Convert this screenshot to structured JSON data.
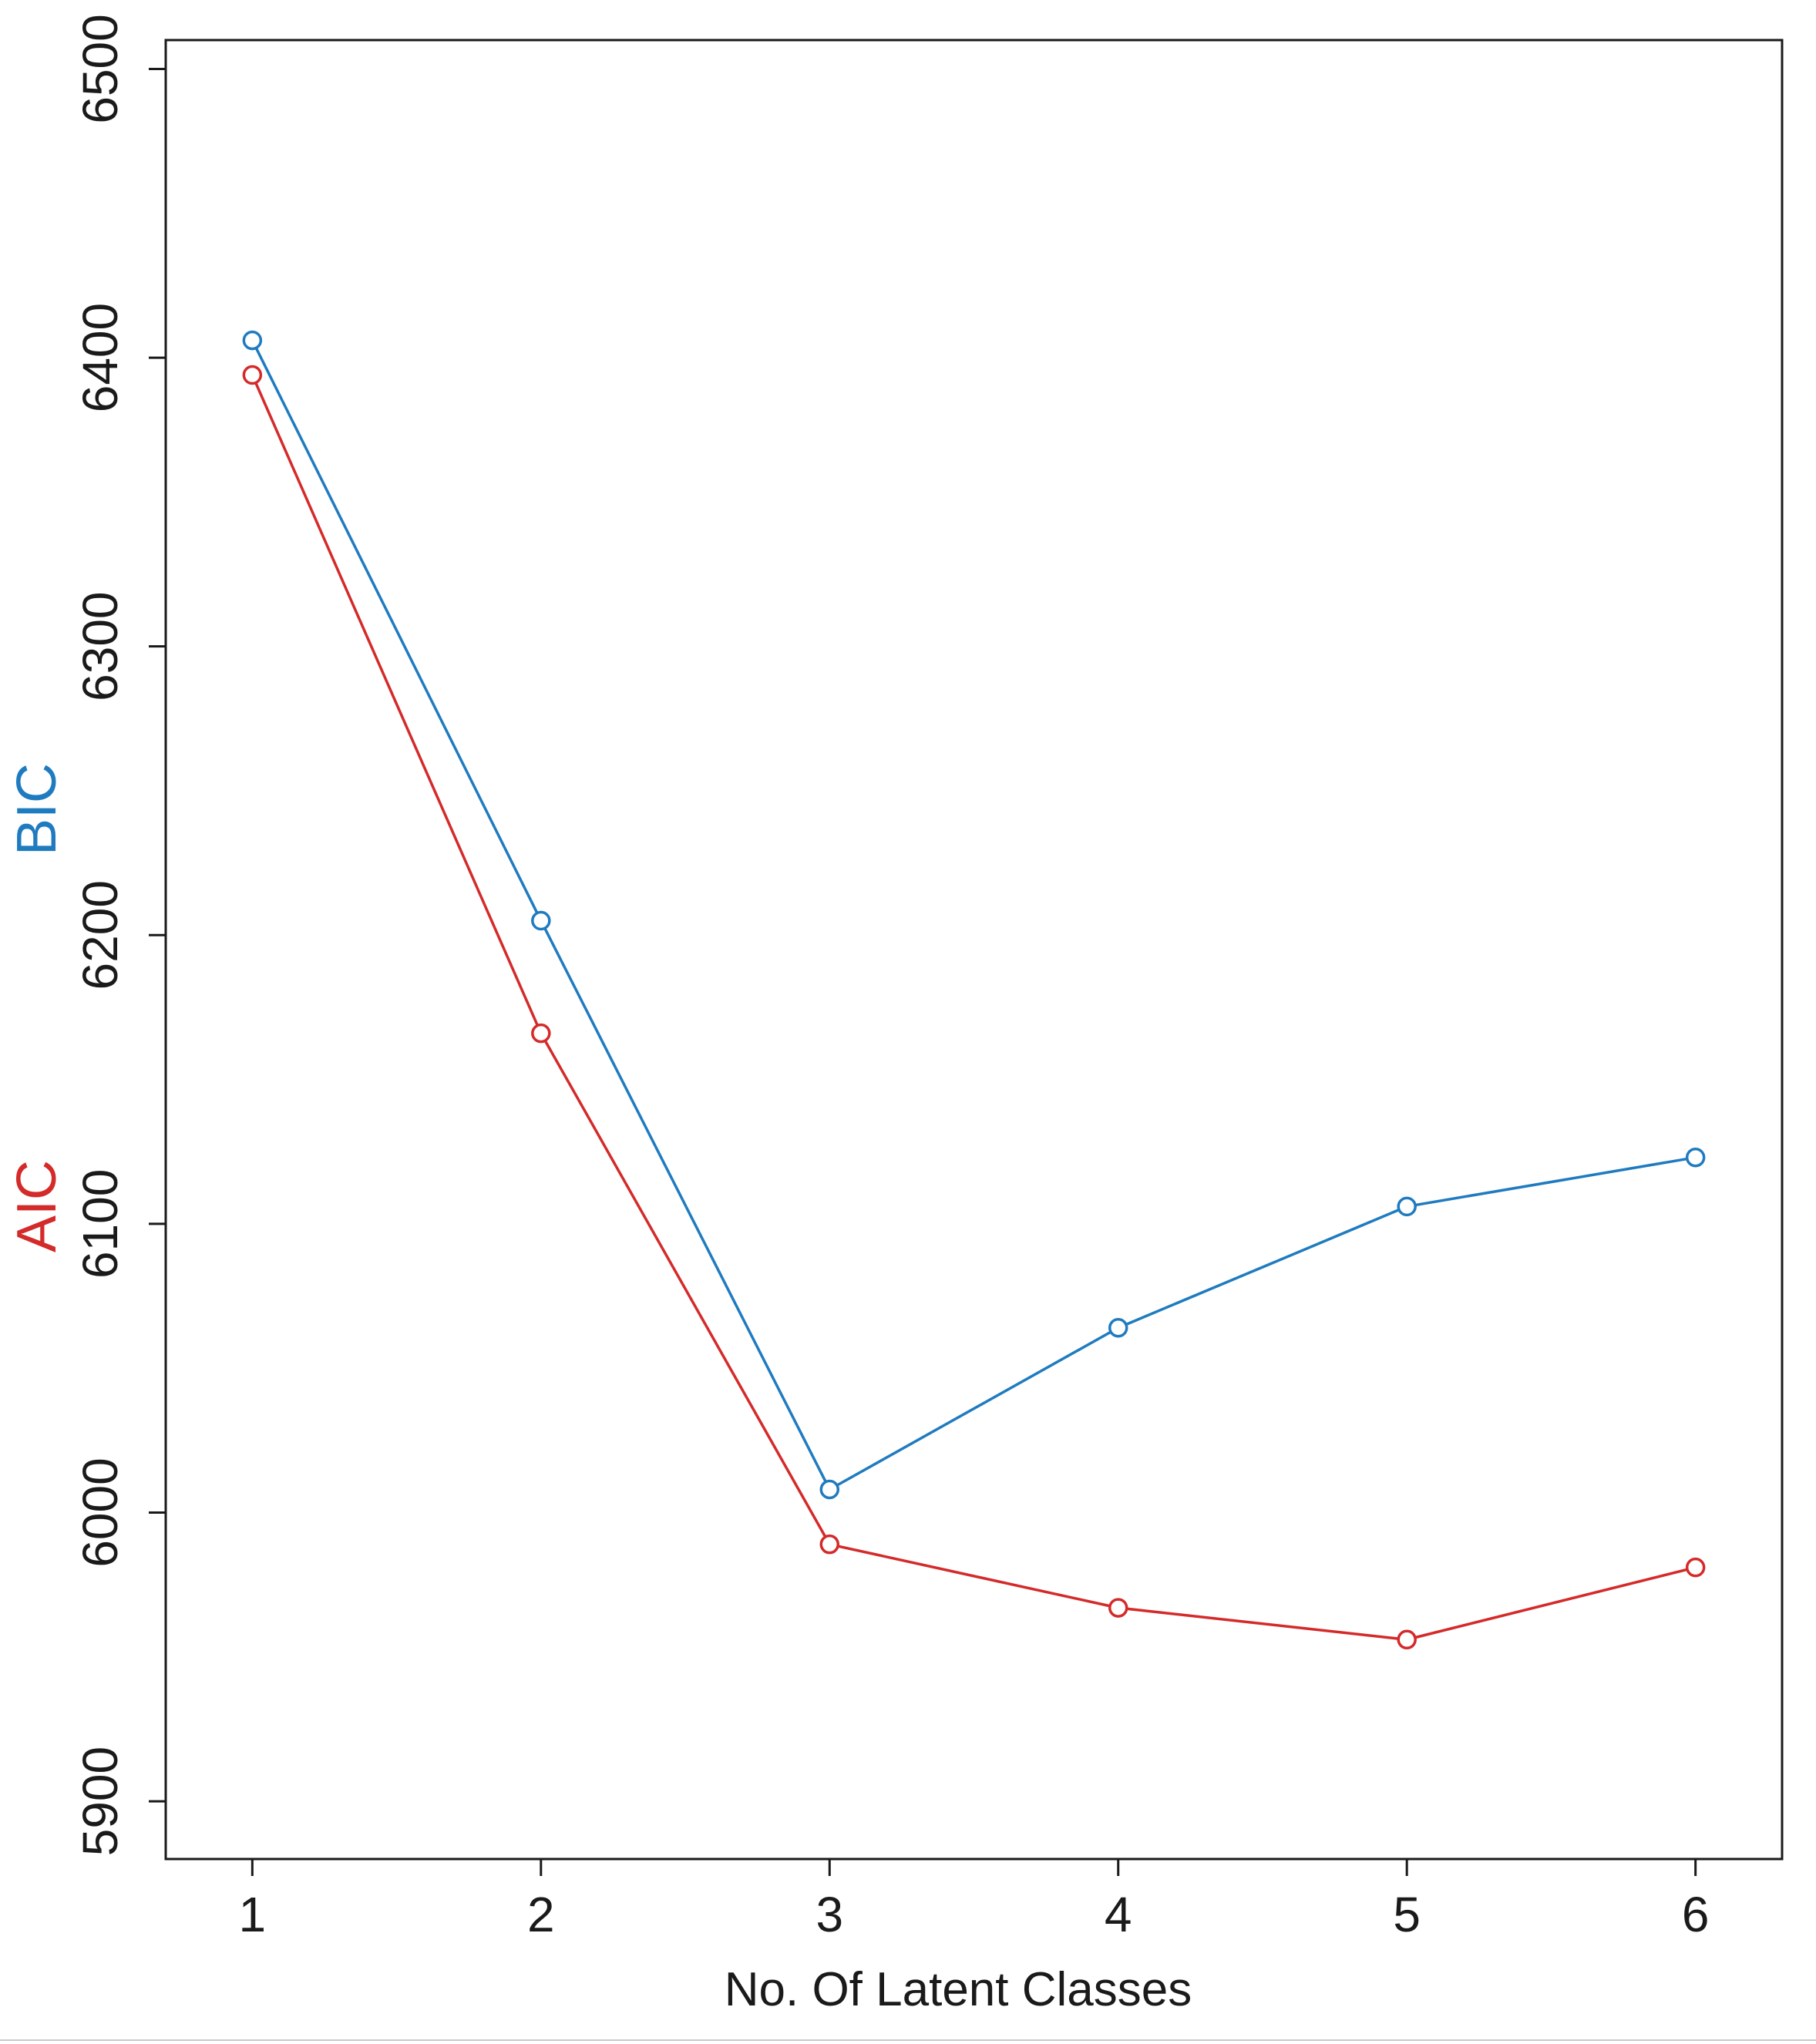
{
  "chart_data": {
    "type": "line",
    "title": "",
    "xlabel": "No. Of Latent Classes",
    "ylabel_parts": [
      {
        "text": "AIC",
        "color": "#d42a2a"
      },
      {
        "text": "BIC",
        "color": "#1f7bc0"
      }
    ],
    "x": [
      1,
      2,
      3,
      4,
      5,
      6
    ],
    "xticks": [
      "1",
      "2",
      "3",
      "4",
      "5",
      "6"
    ],
    "xlim": [
      0.7,
      6.3
    ],
    "ylim": [
      5880,
      6510
    ],
    "yticks": [
      5900,
      6000,
      6100,
      6200,
      6300,
      6400,
      6500
    ],
    "ytick_labels": [
      "5900",
      "6000",
      "6100",
      "6200",
      "6300",
      "6400",
      "6500"
    ],
    "grid": false,
    "legend": "none",
    "series": [
      {
        "name": "AIC",
        "color": "#d42a2a",
        "values": [
          6394,
          6166,
          5989,
          5967,
          5956,
          5981
        ]
      },
      {
        "name": "BIC",
        "color": "#1f7bc0",
        "values": [
          6406,
          6205,
          6008,
          6064,
          6106,
          6123
        ]
      }
    ]
  }
}
